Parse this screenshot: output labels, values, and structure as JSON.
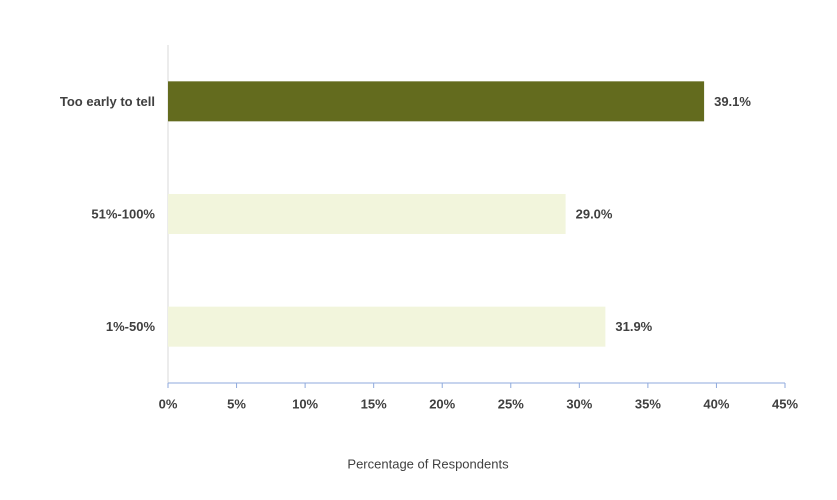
{
  "chart_data": {
    "type": "barh",
    "categories": [
      "Too early to tell",
      "51%-100%",
      "1%-50%"
    ],
    "values": [
      39.1,
      29.0,
      31.9
    ],
    "value_labels": [
      "39.1%",
      "29.0%",
      "31.9%"
    ],
    "colors": [
      "#636b1e",
      "#f2f5dc",
      "#f2f5dc"
    ],
    "xlabel": "Percentage of Respondents",
    "xlim": [
      0,
      45
    ],
    "xticks": [
      {
        "value": 0,
        "label": "0%"
      },
      {
        "value": 5,
        "label": "5%"
      },
      {
        "value": 10,
        "label": "10%"
      },
      {
        "value": 15,
        "label": "15%"
      },
      {
        "value": 20,
        "label": "20%"
      },
      {
        "value": 25,
        "label": "25%"
      },
      {
        "value": 30,
        "label": "30%"
      },
      {
        "value": 35,
        "label": "35%"
      },
      {
        "value": 40,
        "label": "40%"
      },
      {
        "value": 45,
        "label": "45%"
      }
    ]
  }
}
